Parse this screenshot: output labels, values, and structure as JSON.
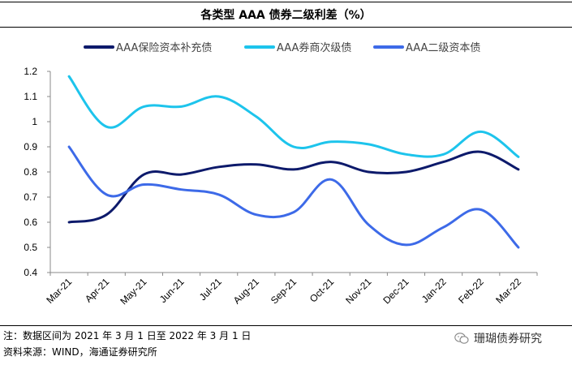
{
  "title": "各类型 AAA 债券二级利差（%）",
  "note": "注：数据区间为 2021 年 3 月 1 日至 2022 年 3 月 1 日",
  "source": "资料来源：WIND，海通证券研究所",
  "brand": "珊瑚债券研究",
  "chart_data": {
    "type": "line",
    "title": "各类型 AAA 债券二级利差（%）",
    "xlabel": "",
    "ylabel": "",
    "ylim": [
      0.4,
      1.2
    ],
    "yticks": [
      "1.2",
      "1.1",
      "1",
      "0.9",
      "0.8",
      "0.7",
      "0.6",
      "0.5",
      "0.4"
    ],
    "categories": [
      "Mar-21",
      "Apr-21",
      "May-21",
      "Jun-21",
      "Jul-21",
      "Aug-21",
      "Sep-21",
      "Oct-21",
      "Nov-21",
      "Dec-21",
      "Jan-22",
      "Feb-22",
      "Mar-22"
    ],
    "legend_position": "top",
    "series": [
      {
        "name": "AAA保险资本补充债",
        "color": "#0d1a6b",
        "values": [
          0.6,
          0.63,
          0.79,
          0.79,
          0.82,
          0.83,
          0.81,
          0.84,
          0.8,
          0.8,
          0.84,
          0.88,
          0.81
        ]
      },
      {
        "name": "AAA券商次级债",
        "color": "#1dc4ec",
        "values": [
          1.18,
          0.98,
          1.06,
          1.06,
          1.1,
          1.02,
          0.9,
          0.92,
          0.91,
          0.87,
          0.87,
          0.96,
          0.86
        ]
      },
      {
        "name": "AAA二级资本债",
        "color": "#3d6ae8",
        "values": [
          0.9,
          0.71,
          0.75,
          0.73,
          0.71,
          0.63,
          0.64,
          0.77,
          0.59,
          0.51,
          0.58,
          0.65,
          0.5
        ]
      }
    ]
  }
}
